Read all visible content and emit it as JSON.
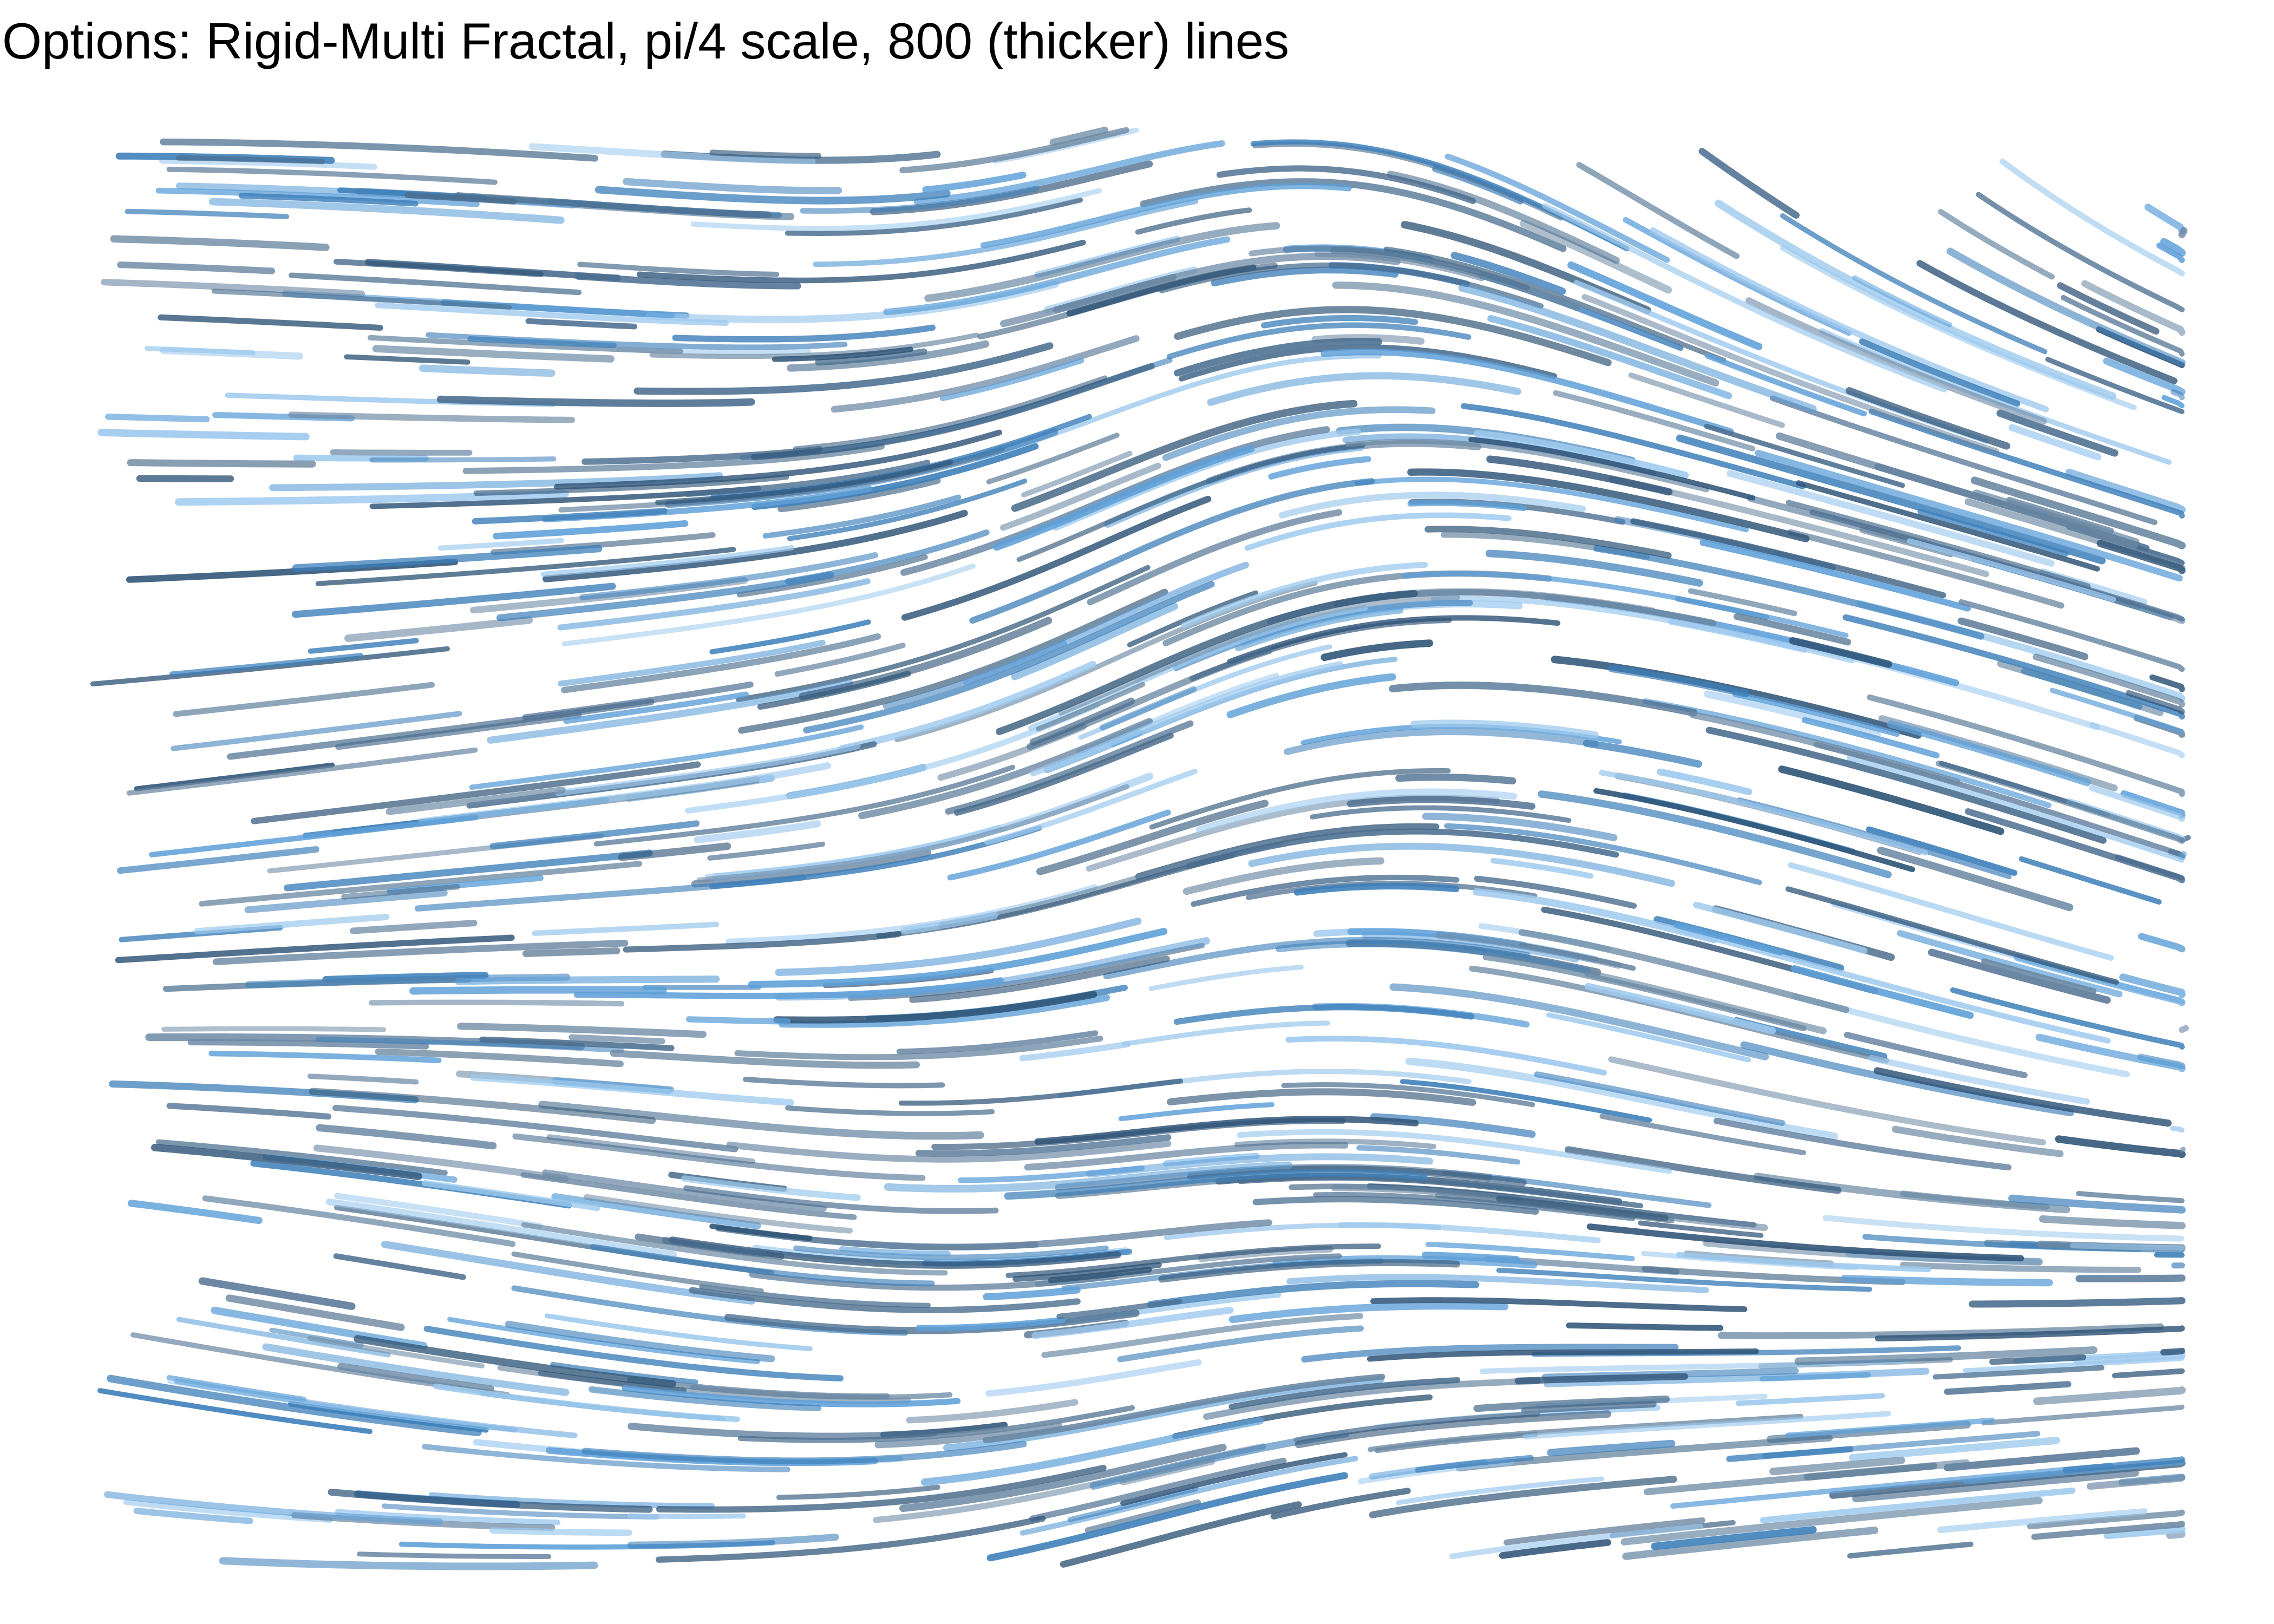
{
  "title": "Options: Rigid-Multi Fractal, pi/4 scale, 800 (thicker) lines",
  "flow_field": {
    "noise": "Rigid-Multi Fractal",
    "scale": "pi/4",
    "line_count": 800,
    "line_weight": "thicker",
    "palette": [
      "#9dc9ee",
      "#5d9fd8",
      "#3d7fba",
      "#4a6d8f",
      "#6b88a3",
      "#2f5477"
    ]
  }
}
